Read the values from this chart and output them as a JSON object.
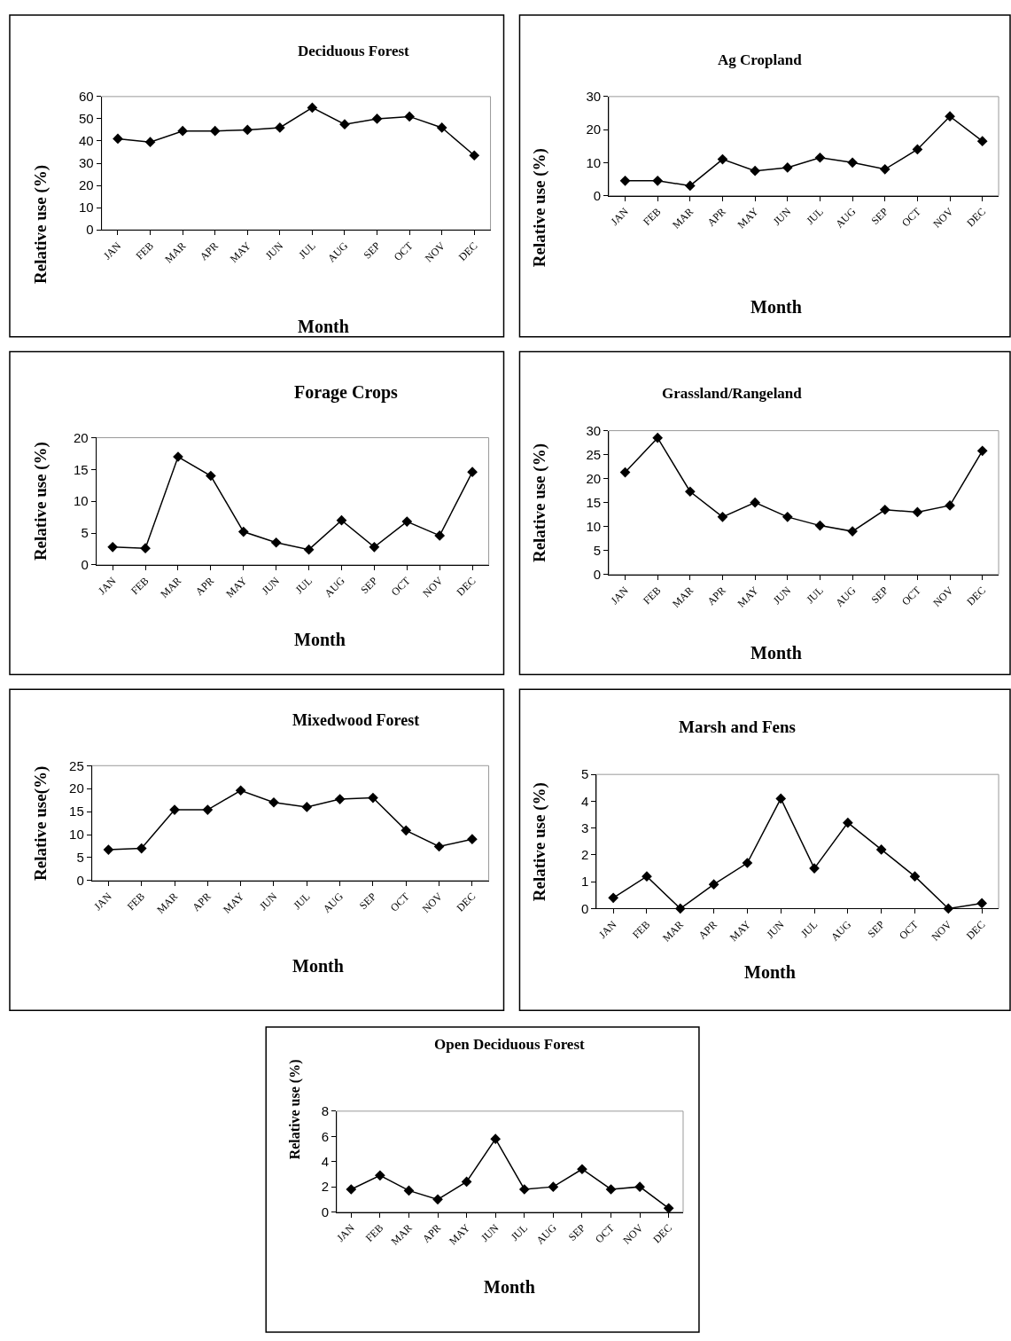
{
  "chart_data": [
    {
      "type": "line",
      "title": "Deciduous Forest",
      "xlabel": "Month",
      "ylabel": "Relative use (%)",
      "categories": [
        "JAN",
        "FEB",
        "MAR",
        "APR",
        "MAY",
        "JUN",
        "JUL",
        "AUG",
        "SEP",
        "OCT",
        "NOV",
        "DEC"
      ],
      "values": [
        41,
        39.5,
        44.5,
        44.5,
        45,
        46,
        55,
        47.5,
        50,
        51,
        46,
        33.5
      ],
      "color": "#000000",
      "marker": "diamond",
      "ylim": [
        0,
        60
      ],
      "yticks": [
        0,
        10,
        20,
        30,
        40,
        50,
        60
      ],
      "grid": false
    },
    {
      "type": "line",
      "title": "Ag Cropland",
      "xlabel": "Month",
      "ylabel": "Relative use (%)",
      "categories": [
        "JAN",
        "FEB",
        "MAR",
        "APR",
        "MAY",
        "JUN",
        "JUL",
        "AUG",
        "SEP",
        "OCT",
        "NOV",
        "DEC"
      ],
      "values": [
        4.5,
        4.5,
        3,
        11,
        7.5,
        8.5,
        11.5,
        10,
        8,
        14,
        24,
        16.5
      ],
      "color": "#000000",
      "marker": "diamond",
      "ylim": [
        0,
        30
      ],
      "yticks": [
        0,
        10,
        20,
        30
      ],
      "grid": false
    },
    {
      "type": "line",
      "title": "Forage Crops",
      "xlabel": "Month",
      "ylabel": "Relative use (%)",
      "categories": [
        "JAN",
        "FEB",
        "MAR",
        "APR",
        "MAY",
        "JUN",
        "JUL",
        "AUG",
        "SEP",
        "OCT",
        "NOV",
        "DEC"
      ],
      "values": [
        2.8,
        2.6,
        17,
        14,
        5.2,
        3.5,
        2.4,
        7,
        2.8,
        6.8,
        4.6,
        14.6
      ],
      "color": "#000000",
      "marker": "diamond",
      "ylim": [
        0,
        20
      ],
      "yticks": [
        0,
        5,
        10,
        15,
        20
      ],
      "grid": false
    },
    {
      "type": "line",
      "title": "Grassland/Rangeland",
      "xlabel": "Month",
      "ylabel": "Relative use (%)",
      "categories": [
        "JAN",
        "FEB",
        "MAR",
        "APR",
        "MAY",
        "JUN",
        "JUL",
        "AUG",
        "SEP",
        "OCT",
        "NOV",
        "DEC"
      ],
      "values": [
        21.3,
        28.5,
        17.3,
        12,
        15,
        12,
        10.2,
        9,
        13.5,
        13,
        14.4,
        25.8
      ],
      "color": "#000000",
      "marker": "diamond",
      "ylim": [
        0,
        30
      ],
      "yticks": [
        0,
        5,
        10,
        15,
        20,
        25,
        30
      ],
      "grid": false
    },
    {
      "type": "line",
      "title": "Mixedwood Forest",
      "xlabel": "Month",
      "ylabel": "Relative use(%)",
      "categories": [
        "JAN",
        "FEB",
        "MAR",
        "APR",
        "MAY",
        "JUN",
        "JUL",
        "AUG",
        "SEP",
        "OCT",
        "NOV",
        "DEC"
      ],
      "values": [
        6.7,
        7,
        15.4,
        15.4,
        19.6,
        17,
        16,
        17.7,
        18,
        10.9,
        7.4,
        9
      ],
      "color": "#000000",
      "marker": "diamond",
      "ylim": [
        0,
        25
      ],
      "yticks": [
        0,
        5,
        10,
        15,
        20,
        25
      ],
      "grid": false
    },
    {
      "type": "line",
      "title": "Marsh and Fens",
      "xlabel": "Month",
      "ylabel": "Relative use (%)",
      "categories": [
        "JAN",
        "FEB",
        "MAR",
        "APR",
        "MAY",
        "JUN",
        "JUL",
        "AUG",
        "SEP",
        "OCT",
        "NOV",
        "DEC"
      ],
      "values": [
        0.4,
        1.2,
        0,
        0.9,
        1.7,
        4.1,
        1.5,
        3.2,
        2.2,
        1.2,
        0,
        0.2
      ],
      "color": "#000000",
      "marker": "diamond",
      "ylim": [
        0,
        5
      ],
      "yticks": [
        0,
        1,
        2,
        3,
        4,
        5
      ],
      "grid": false
    },
    {
      "type": "line",
      "title": "Open Deciduous Forest",
      "xlabel": "Month",
      "ylabel": "Relative use (%)",
      "categories": [
        "JAN",
        "FEB",
        "MAR",
        "APR",
        "MAY",
        "JUN",
        "JUL",
        "AUG",
        "SEP",
        "OCT",
        "NOV",
        "DEC"
      ],
      "values": [
        1.8,
        2.9,
        1.7,
        1.0,
        2.4,
        5.8,
        1.8,
        2.0,
        3.4,
        1.8,
        2.0,
        0.3
      ],
      "color": "#000000",
      "marker": "diamond",
      "ylim": [
        0,
        8
      ],
      "yticks": [
        0,
        2,
        4,
        6,
        8
      ],
      "grid": false
    }
  ]
}
